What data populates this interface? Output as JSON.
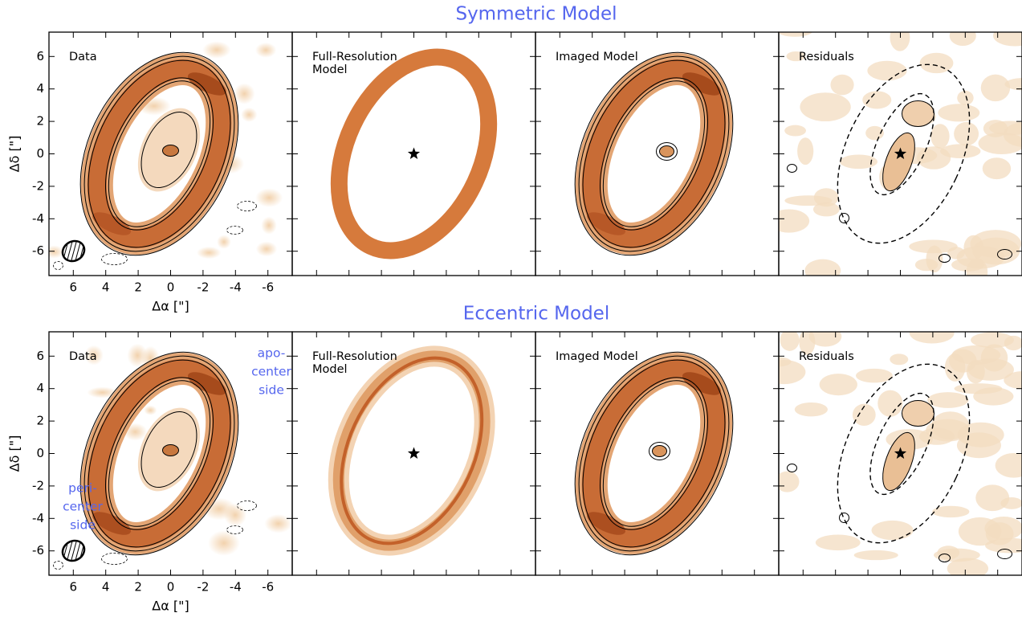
{
  "rows": [
    {
      "title": "Symmetric Model",
      "panels": [
        {
          "label": [
            "Data"
          ]
        },
        {
          "label": [
            "Full-Resolution",
            "Model"
          ]
        },
        {
          "label": [
            "Imaged Model"
          ]
        },
        {
          "label": [
            "Residuals"
          ]
        }
      ]
    },
    {
      "title": "Eccentric Model",
      "panels": [
        {
          "label": [
            "Data"
          ]
        },
        {
          "label": [
            "Full-Resolution",
            "Model"
          ]
        },
        {
          "label": [
            "Imaged Model"
          ]
        },
        {
          "label": [
            "Residuals"
          ]
        }
      ],
      "annotations": [
        {
          "lines": [
            "apo-",
            "center",
            "side"
          ]
        },
        {
          "lines": [
            "peri-",
            "center",
            "side"
          ]
        }
      ]
    }
  ],
  "axes": {
    "xlabel": "Δα [\"]",
    "ylabel": "Δδ [\"]",
    "xlim": [
      7.5,
      -7.5
    ],
    "ylim": [
      -7.5,
      7.5
    ],
    "xticks": [
      6,
      4,
      2,
      0,
      -2,
      -4,
      -6
    ],
    "yticks": [
      -6,
      -4,
      -2,
      0,
      2,
      4,
      6
    ]
  }
}
